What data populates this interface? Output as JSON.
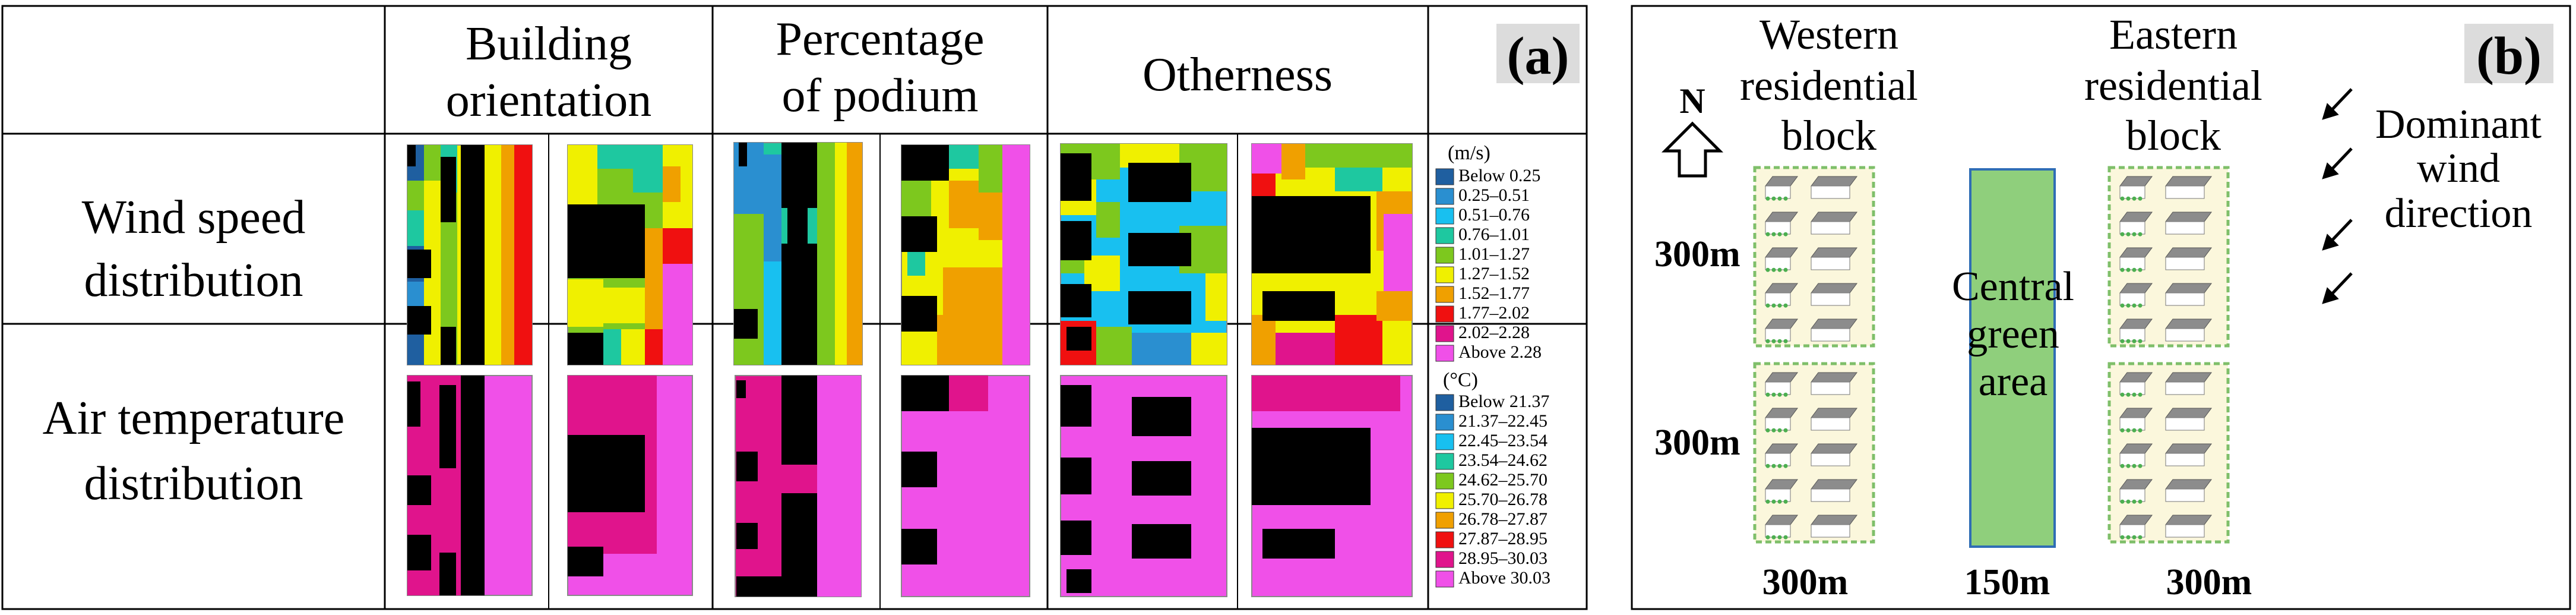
{
  "panel_a": {
    "label": "(a)",
    "columns": [
      "Building orientation",
      "Percentage of podium",
      "Otherness"
    ],
    "rows": [
      "Wind speed distribution",
      "Air temperature distribution"
    ],
    "wind_legend": {
      "unit": "(m/s)",
      "items": [
        {
          "label": "Below 0.25",
          "color": "#1f5fa0"
        },
        {
          "label": "0.25–0.51",
          "color": "#2a8fd0"
        },
        {
          "label": "0.51–0.76",
          "color": "#18c0f0"
        },
        {
          "label": "0.76–1.01",
          "color": "#1ec8a0"
        },
        {
          "label": "1.01–1.27",
          "color": "#7dc81e"
        },
        {
          "label": "1.27–1.52",
          "color": "#f0f000"
        },
        {
          "label": "1.52–1.77",
          "color": "#f0a000"
        },
        {
          "label": "1.77–2.02",
          "color": "#f01010"
        },
        {
          "label": "2.02–2.28",
          "color": "#e0148c"
        },
        {
          "label": "Above 2.28",
          "color": "#f050e8"
        }
      ]
    },
    "temp_legend": {
      "unit": "(°C)",
      "items": [
        {
          "label": "Below 21.37",
          "color": "#1f5fa0"
        },
        {
          "label": "21.37–22.45",
          "color": "#2a8fd0"
        },
        {
          "label": "22.45–23.54",
          "color": "#18c0f0"
        },
        {
          "label": "23.54–24.62",
          "color": "#1ec8a0"
        },
        {
          "label": "24.62–25.70",
          "color": "#7dc81e"
        },
        {
          "label": "25.70–26.78",
          "color": "#f0f000"
        },
        {
          "label": "26.78–27.87",
          "color": "#f0a000"
        },
        {
          "label": "27.87–28.95",
          "color": "#f01010"
        },
        {
          "label": "28.95–30.03",
          "color": "#e0148c"
        },
        {
          "label": "Above 30.03",
          "color": "#f050e8"
        }
      ]
    }
  },
  "panel_b": {
    "label": "(b)",
    "north": "N",
    "west_block_title": "Western residential block",
    "east_block_title": "Eastern residential block",
    "green_area_label": "Central green area",
    "wind_label": "Dominant wind direction",
    "dim_top": "300m",
    "dim_bottom": "300m",
    "dim_west": "300m",
    "dim_center": "150m",
    "dim_east": "300m"
  }
}
